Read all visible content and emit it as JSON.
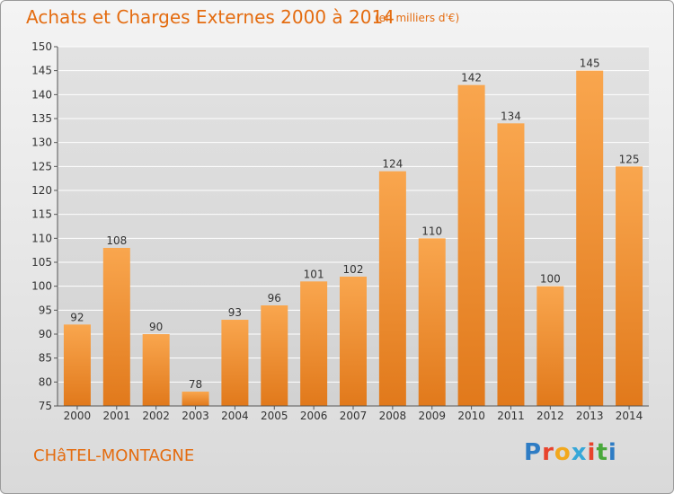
{
  "header": {
    "title": "Achats et Charges Externes 2000 à 2014",
    "unit": "(en milliers d'€)"
  },
  "footer": {
    "town": "CHâTEL-MONTAGNE"
  },
  "logo": {
    "text": "Proxiti",
    "letter_colors": [
      "#2e7cc4",
      "#e8432c",
      "#f2a81d",
      "#36a7d8",
      "#e8432c",
      "#4aa83c",
      "#2e7cc4"
    ]
  },
  "colors": {
    "bar_light": "#f9a64e",
    "bar_dark": "#e1791b",
    "accent_text": "#e46c10",
    "grid": "#ffffff"
  },
  "chart_data": {
    "type": "bar",
    "categories": [
      "2000",
      "2001",
      "2002",
      "2003",
      "2004",
      "2005",
      "2006",
      "2007",
      "2008",
      "2009",
      "2010",
      "2011",
      "2012",
      "2013",
      "2014"
    ],
    "values": [
      92,
      108,
      90,
      78,
      93,
      96,
      101,
      102,
      124,
      110,
      142,
      134,
      100,
      145,
      125
    ],
    "ylim": [
      75,
      150
    ],
    "yticks": [
      75,
      80,
      85,
      90,
      95,
      100,
      105,
      110,
      115,
      120,
      125,
      130,
      135,
      140,
      145,
      150
    ],
    "grid": true,
    "data_labels": true
  }
}
